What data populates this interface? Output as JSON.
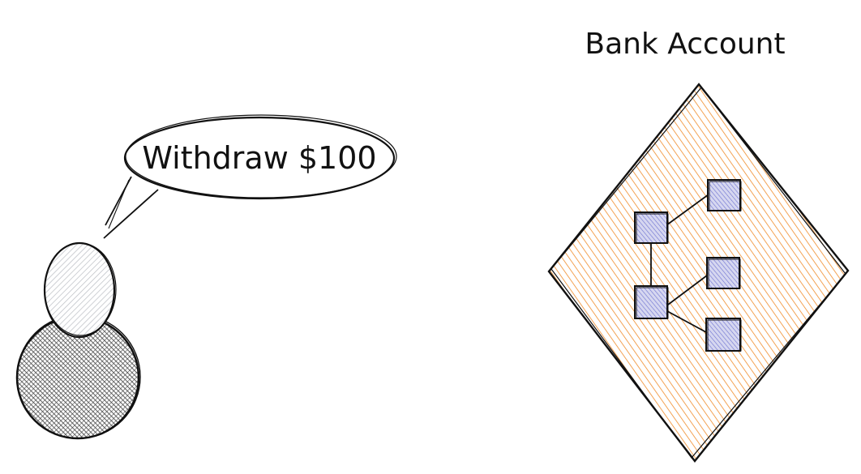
{
  "speech_bubble": {
    "text": "Withdraw $100"
  },
  "bank_account": {
    "title": "Bank Account",
    "diamond_fill": "#f08c2a",
    "node_fill": "#7b7fd6",
    "node_count": 5
  },
  "person": {
    "head_fill": "#c9ccd1",
    "body_fill": "#4a4a4a"
  },
  "stroke_color": "#111111"
}
